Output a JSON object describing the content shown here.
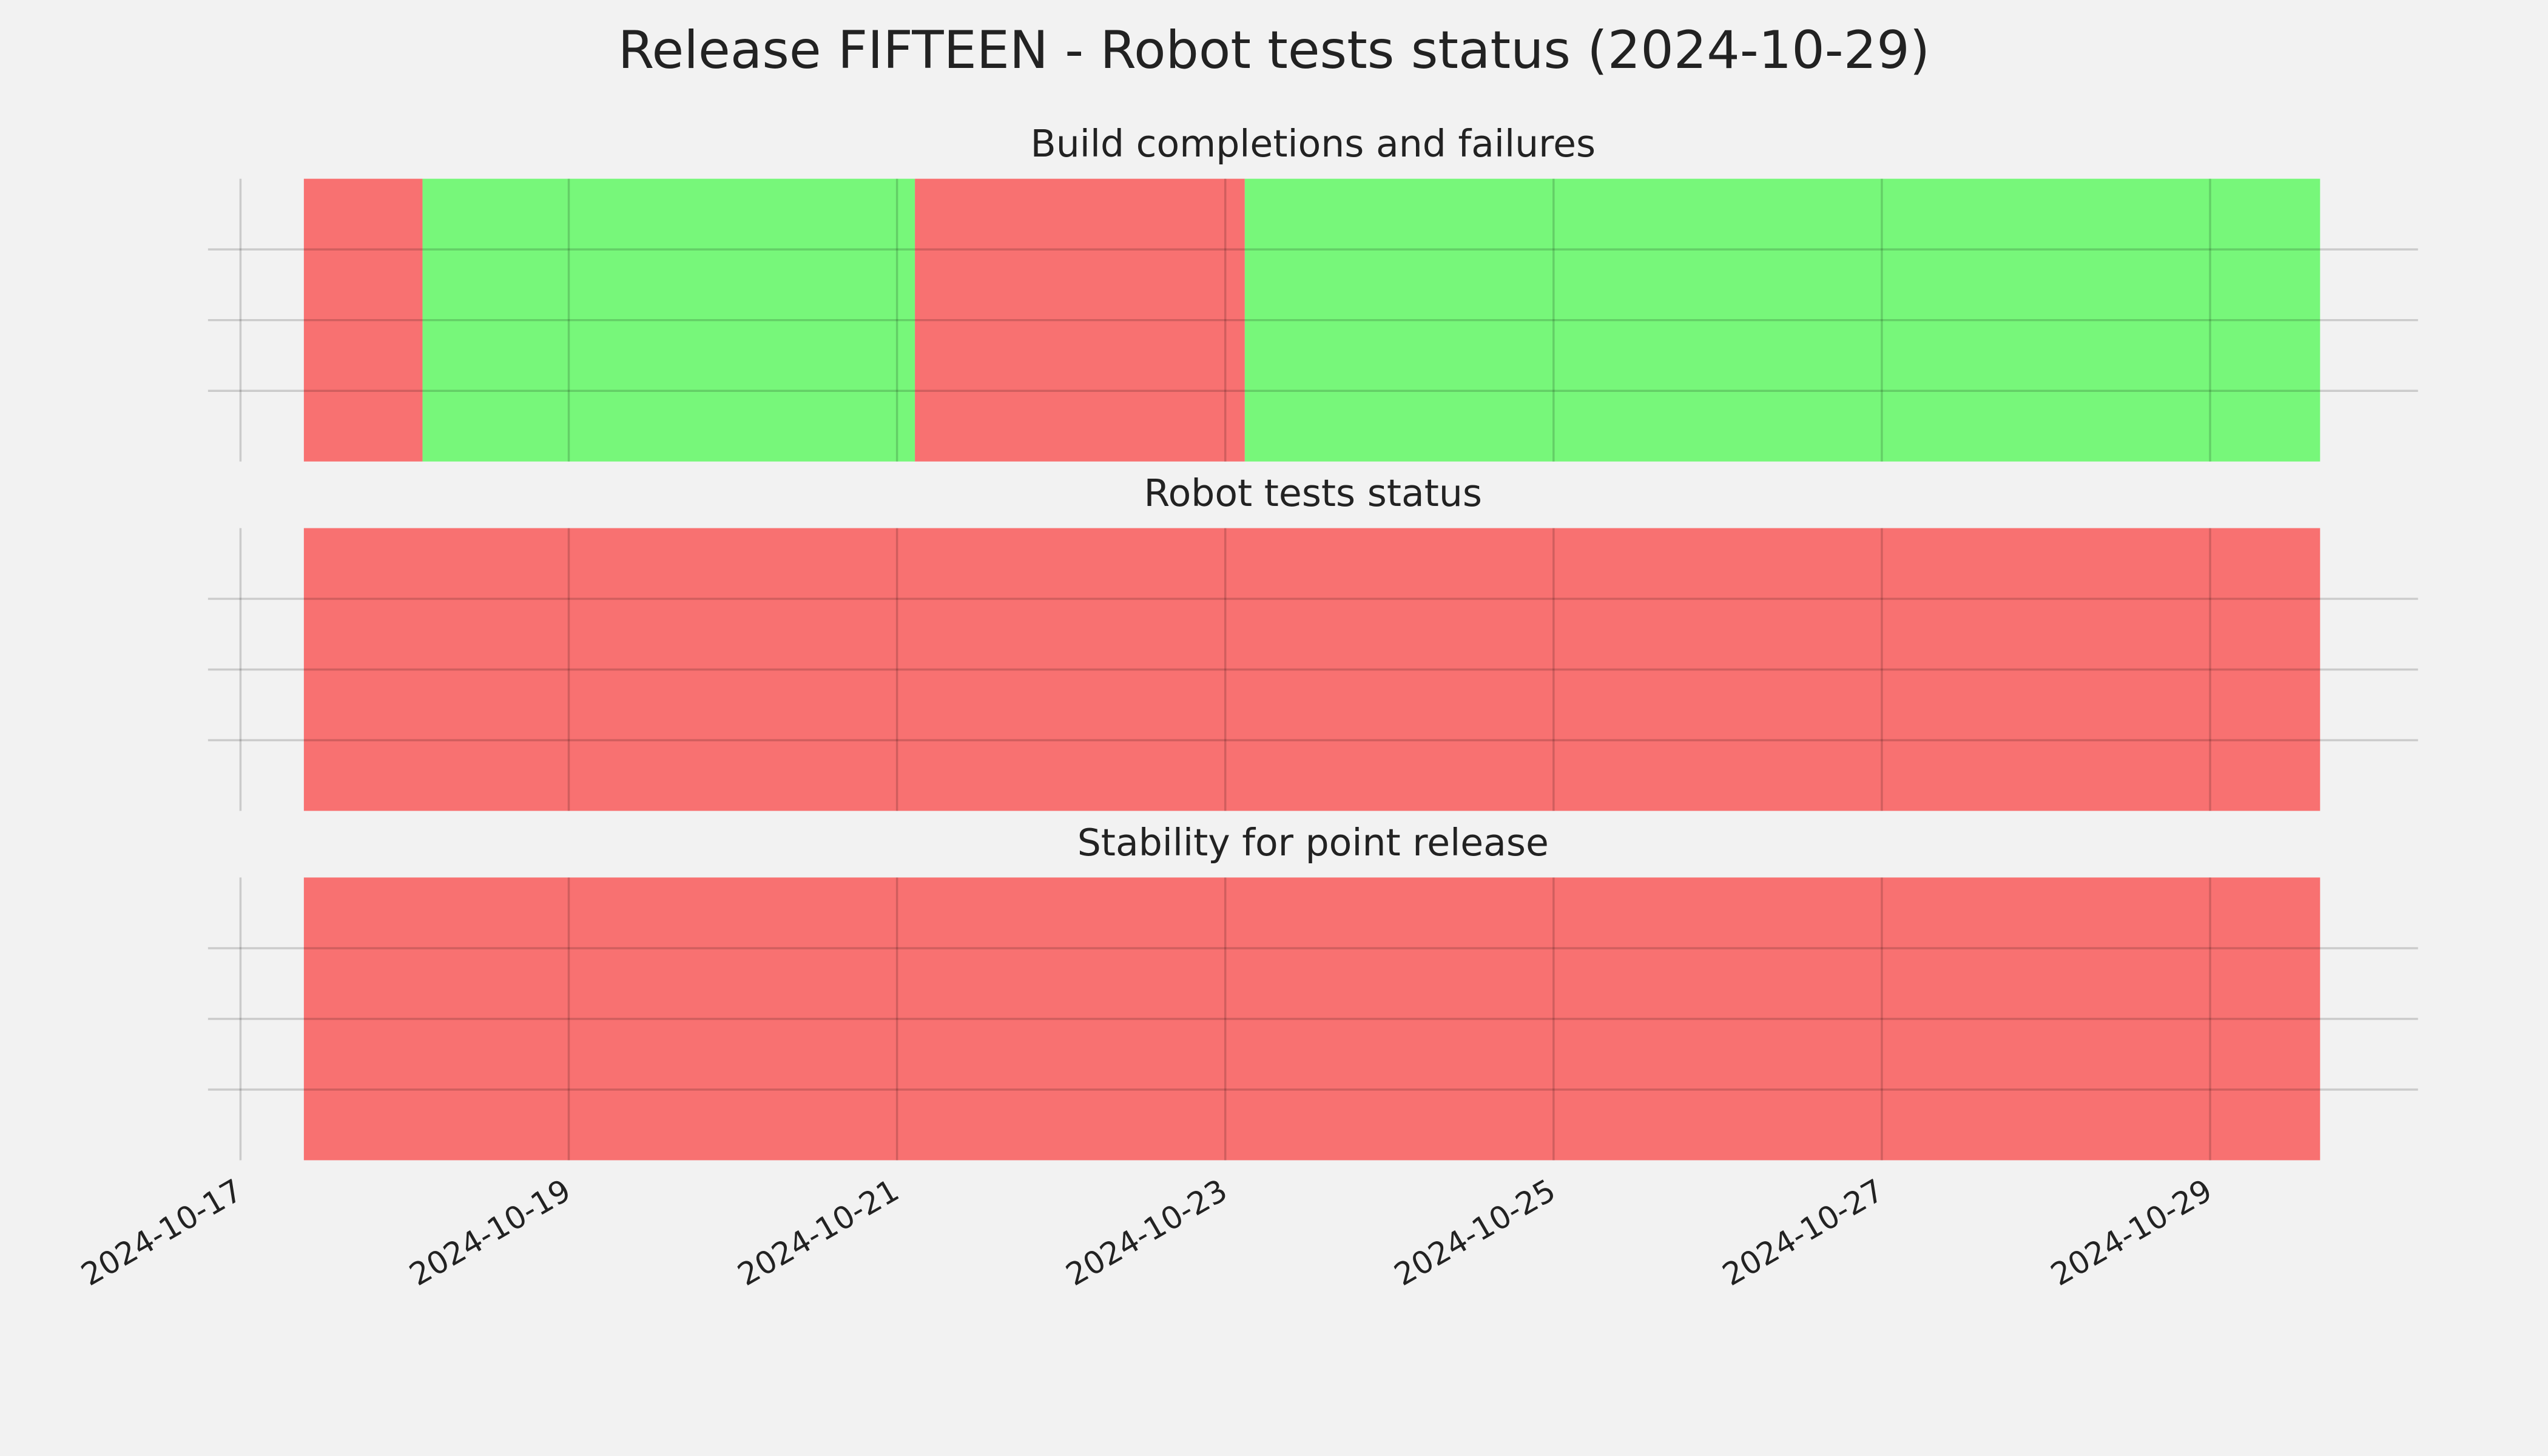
{
  "chart_data": [
    {
      "type": "timeline",
      "title": "Release FIFTEEN - Robot tests status (2024-10-29)",
      "subtitle": "Build completions and failures",
      "segments": [
        {
          "start": "2024-10-17T09:16",
          "end": "2024-10-18T02:37",
          "color": "#f87171"
        },
        {
          "start": "2024-10-18T02:37",
          "end": "2024-10-21T02:37",
          "color": "#77f77a"
        },
        {
          "start": "2024-10-21T02:37",
          "end": "2024-10-23T02:51",
          "color": "#f87171"
        },
        {
          "start": "2024-10-23T02:51",
          "end": "2024-10-29T16:05",
          "color": "#77f77a"
        }
      ],
      "xlim": [
        "2024-10-16T19:15",
        "2024-10-30T06:24"
      ],
      "xticks": [
        "2024-10-17",
        "2024-10-19",
        "2024-10-21",
        "2024-10-23",
        "2024-10-25",
        "2024-10-27",
        "2024-10-29"
      ],
      "ylim": [
        0,
        1
      ],
      "yticks": [
        0.25,
        0.5,
        0.75
      ],
      "grid": true
    },
    {
      "type": "timeline",
      "subtitle": "Robot tests status",
      "segments": [
        {
          "start": "2024-10-17T09:16",
          "end": "2024-10-29T16:05",
          "color": "#f87171"
        }
      ],
      "xlim": [
        "2024-10-16T19:15",
        "2024-10-30T06:24"
      ],
      "xticks": [
        "2024-10-17",
        "2024-10-19",
        "2024-10-21",
        "2024-10-23",
        "2024-10-25",
        "2024-10-27",
        "2024-10-29"
      ],
      "ylim": [
        0,
        1
      ],
      "yticks": [
        0.25,
        0.5,
        0.75
      ],
      "grid": true
    },
    {
      "type": "timeline",
      "subtitle": "Stability for point release",
      "segments": [
        {
          "start": "2024-10-17T09:16",
          "end": "2024-10-29T16:05",
          "color": "#f87171"
        }
      ],
      "xlim": [
        "2024-10-16T19:15",
        "2024-10-30T06:24"
      ],
      "xticks": [
        "2024-10-17",
        "2024-10-19",
        "2024-10-21",
        "2024-10-23",
        "2024-10-25",
        "2024-10-27",
        "2024-10-29"
      ],
      "ylim": [
        0,
        1
      ],
      "yticks": [
        0.25,
        0.5,
        0.75
      ],
      "grid": true,
      "show_xtick_labels": true
    }
  ]
}
